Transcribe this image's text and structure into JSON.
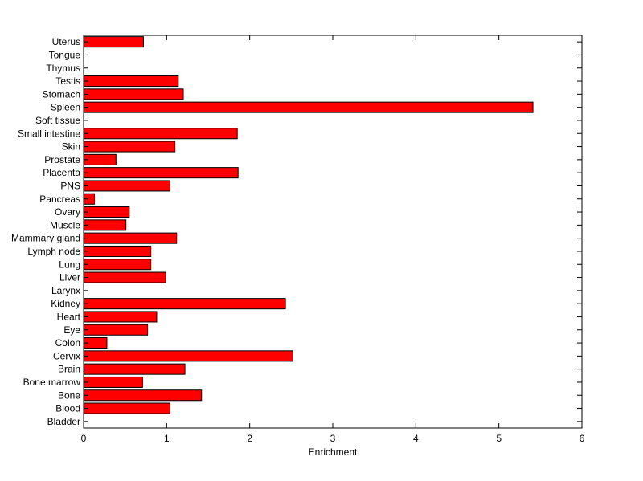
{
  "chart_data": {
    "type": "bar",
    "orientation": "horizontal",
    "title": "",
    "xlabel": "Enrichment",
    "ylabel": "",
    "xlim": [
      0,
      6
    ],
    "xticks": [
      "0",
      "1",
      "2",
      "3",
      "4",
      "5",
      "6"
    ],
    "grid": false,
    "bar_color": "#ff0000",
    "categories": [
      "Bladder",
      "Blood",
      "Bone",
      "Bone marrow",
      "Brain",
      "Cervix",
      "Colon",
      "Eye",
      "Heart",
      "Kidney",
      "Larynx",
      "Liver",
      "Lung",
      "Lymph node",
      "Mammary gland",
      "Muscle",
      "Ovary",
      "Pancreas",
      "PNS",
      "Placenta",
      "Prostate",
      "Skin",
      "Small intestine",
      "Soft tissue",
      "Spleen",
      "Stomach",
      "Testis",
      "Thymus",
      "Tongue",
      "Uterus"
    ],
    "values": [
      0,
      1.04,
      1.42,
      0.71,
      1.22,
      2.52,
      0.28,
      0.77,
      0.88,
      2.43,
      0,
      0.99,
      0.81,
      0.81,
      1.12,
      0.51,
      0.55,
      0.13,
      1.04,
      1.86,
      0.39,
      1.1,
      1.85,
      0,
      5.41,
      1.2,
      1.14,
      0,
      0,
      0.72
    ]
  }
}
